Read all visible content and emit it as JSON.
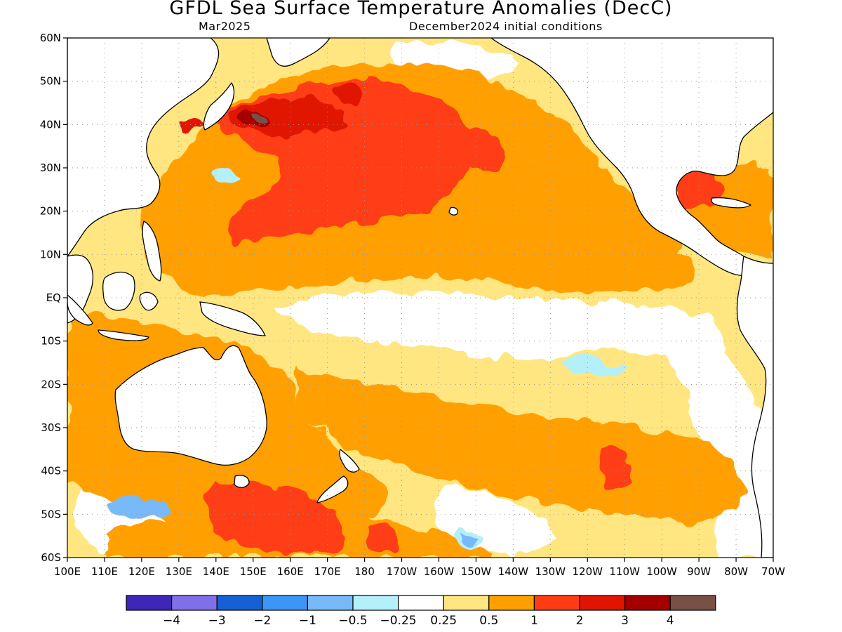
{
  "title": "GFDL Sea Surface Temperature Anomalies (DecC)",
  "subtitle_left": "Mar2025",
  "subtitle_right": "December2024 initial conditions",
  "map": {
    "lon_min": 100,
    "lon_max": 290,
    "lat_min": -60,
    "lat_max": 60,
    "grid": true,
    "lat_ticks": [
      {
        "value": 60,
        "label": "60N"
      },
      {
        "value": 50,
        "label": "50N"
      },
      {
        "value": 40,
        "label": "40N"
      },
      {
        "value": 30,
        "label": "30N"
      },
      {
        "value": 20,
        "label": "20N"
      },
      {
        "value": 10,
        "label": "10N"
      },
      {
        "value": 0,
        "label": "EQ"
      },
      {
        "value": -10,
        "label": "10S"
      },
      {
        "value": -20,
        "label": "20S"
      },
      {
        "value": -30,
        "label": "30S"
      },
      {
        "value": -40,
        "label": "40S"
      },
      {
        "value": -50,
        "label": "50S"
      },
      {
        "value": -60,
        "label": "60S"
      }
    ],
    "lon_ticks": [
      {
        "value": 100,
        "label": "100E"
      },
      {
        "value": 110,
        "label": "110E"
      },
      {
        "value": 120,
        "label": "120E"
      },
      {
        "value": 130,
        "label": "130E"
      },
      {
        "value": 140,
        "label": "140E"
      },
      {
        "value": 150,
        "label": "150E"
      },
      {
        "value": 160,
        "label": "160E"
      },
      {
        "value": 170,
        "label": "170E"
      },
      {
        "value": 180,
        "label": "180"
      },
      {
        "value": 190,
        "label": "170W"
      },
      {
        "value": 200,
        "label": "160W"
      },
      {
        "value": 210,
        "label": "150W"
      },
      {
        "value": 220,
        "label": "140W"
      },
      {
        "value": 230,
        "label": "130W"
      },
      {
        "value": 240,
        "label": "120W"
      },
      {
        "value": 250,
        "label": "110W"
      },
      {
        "value": 260,
        "label": "100W"
      },
      {
        "value": 270,
        "label": "90W"
      },
      {
        "value": 280,
        "label": "80W"
      },
      {
        "value": 290,
        "label": "70W"
      }
    ]
  },
  "colorbar": {
    "colors": [
      "#3d26b8",
      "#8070e8",
      "#1560d2",
      "#3c96f5",
      "#78b9fa",
      "#b4f0fa",
      "#ffffff",
      "#ffe680",
      "#ffa000",
      "#ff3c14",
      "#e11400",
      "#a50000",
      "#785046"
    ],
    "labels": [
      "−4",
      "−3",
      "−2",
      "−1",
      "−0.5",
      "−0.25",
      "0.25",
      "0.5",
      "1",
      "2",
      "3",
      "4"
    ]
  },
  "colors": {
    "land": "#ffffff",
    "coast": "#000000",
    "neutral": "#ffffff",
    "warm_05": "#ffe680",
    "warm_1": "#ffa000",
    "warm_2": "#ff3c14",
    "warm_3": "#e11400",
    "warm_4": "#a50000",
    "warm_5": "#785046",
    "cool_1": "#b4f0fa",
    "cool_2": "#78b9fa",
    "cool_3": "#3c96f5",
    "cool_4": "#1560d2"
  }
}
